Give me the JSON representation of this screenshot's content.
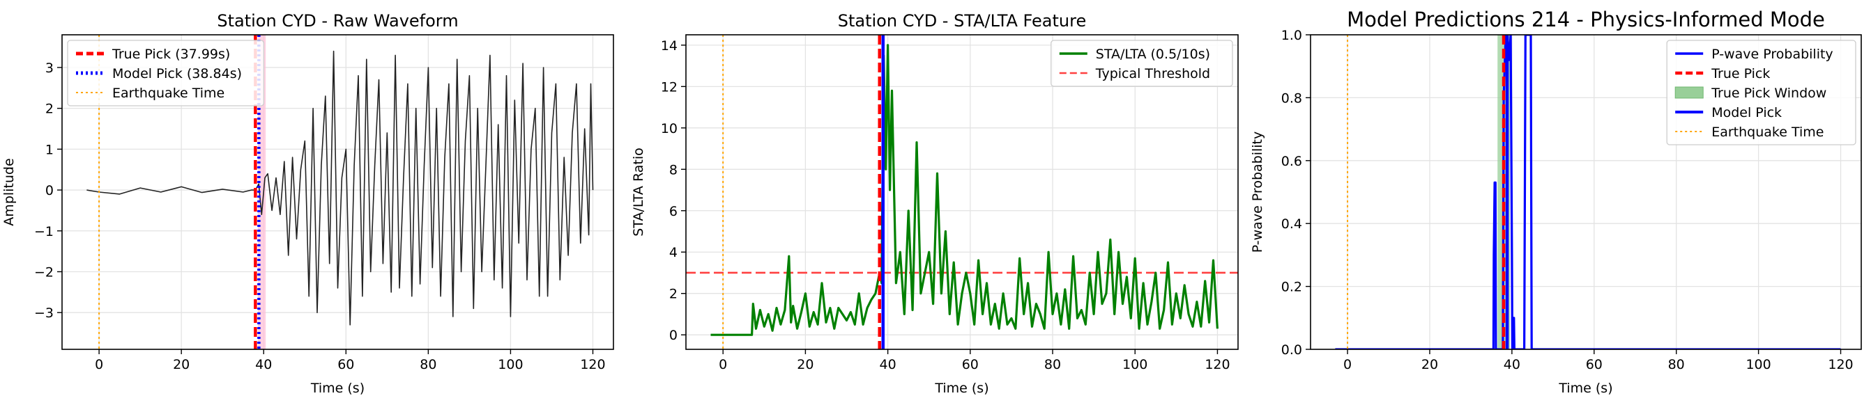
{
  "chart_data": [
    {
      "type": "line",
      "title": "Station CYD - Raw Waveform",
      "xlabel": "Time (s)",
      "ylabel": "Amplitude",
      "xlim": [
        -9,
        125
      ],
      "ylim": [
        -3.9,
        3.8
      ],
      "xticks": [
        0,
        20,
        40,
        60,
        80,
        100,
        120
      ],
      "yticks": [
        -3,
        -2,
        -1,
        0,
        1,
        2,
        3
      ],
      "grid": true,
      "legend": "top-left",
      "series": [
        {
          "name": "",
          "kind": "waveform",
          "color": "#222222",
          "x": [
            -3,
            0,
            5,
            10,
            15,
            20,
            25,
            30,
            35,
            37,
            38,
            38.8,
            39.5,
            40.3,
            41,
            42,
            43,
            44,
            45,
            46,
            47,
            48,
            49,
            50,
            51,
            52,
            53,
            54,
            55,
            56,
            57,
            58,
            59,
            60,
            61,
            62,
            63,
            64,
            65,
            66,
            67,
            68,
            69,
            70,
            71,
            72,
            73,
            74,
            75,
            76,
            77,
            78,
            79,
            80,
            81,
            82,
            83,
            84,
            85,
            86,
            87,
            88,
            89,
            90,
            91,
            92,
            93,
            94,
            95,
            96,
            97,
            98,
            99,
            100,
            101,
            102,
            103,
            104,
            105,
            106,
            107,
            108,
            109,
            110,
            111,
            112,
            113,
            114,
            115,
            116,
            117,
            118,
            119,
            119.5,
            120
          ],
          "y": [
            0.0,
            -0.05,
            -0.1,
            0.05,
            -0.05,
            0.08,
            -0.06,
            0.02,
            -0.05,
            0.0,
            0.0,
            0.15,
            -0.6,
            0.3,
            0.4,
            -0.5,
            0.3,
            -0.6,
            0.7,
            -1.6,
            0.8,
            -1.2,
            0.5,
            1.2,
            -2.6,
            2.0,
            -3.0,
            0.6,
            2.3,
            -1.8,
            3.4,
            -2.4,
            0.3,
            1.0,
            -3.3,
            0.6,
            2.8,
            -2.6,
            3.2,
            -2.0,
            0.6,
            2.7,
            -1.8,
            1.4,
            -2.5,
            3.3,
            -2.4,
            0.3,
            2.6,
            -2.6,
            2.0,
            -2.3,
            0.6,
            3.0,
            -1.9,
            2.0,
            -2.6,
            0.8,
            2.6,
            -3.1,
            3.2,
            -2.0,
            1.2,
            2.8,
            -2.9,
            2.0,
            -2.0,
            0.6,
            3.3,
            -2.2,
            1.6,
            -2.4,
            2.8,
            -3.1,
            2.2,
            -1.3,
            3.1,
            -2.2,
            1.0,
            2.0,
            -2.6,
            3.0,
            -2.6,
            1.4,
            2.6,
            -2.2,
            0.8,
            -1.6,
            1.4,
            2.6,
            -1.3,
            1.5,
            -1.1,
            2.6,
            0.0
          ]
        }
      ],
      "vlines": [
        {
          "name": "True Pick (37.99s)",
          "x": 37.99,
          "color": "#ff0000",
          "style": "dashed"
        },
        {
          "name": "Model Pick (38.84s)",
          "x": 38.84,
          "color": "#0000ff",
          "style": "dotted"
        },
        {
          "name": "Earthquake Time",
          "x": 0,
          "color": "#ffa500",
          "style": "dotted"
        }
      ],
      "spans": [
        {
          "x0": 38.6,
          "x1": 40.5,
          "color": "#ffc0d8"
        }
      ]
    },
    {
      "type": "line",
      "title": "Station CYD - STA/LTA Feature",
      "xlabel": "Time (s)",
      "ylabel": "STA/LTA Ratio",
      "xlim": [
        -9,
        125
      ],
      "ylim": [
        -0.7,
        14.5
      ],
      "xticks": [
        0,
        20,
        40,
        60,
        80,
        100,
        120
      ],
      "yticks": [
        0,
        2,
        4,
        6,
        8,
        10,
        12,
        14
      ],
      "grid": true,
      "legend": "top-right",
      "series": [
        {
          "name": "STA/LTA (0.5/10s)",
          "color": "#008000",
          "x": [
            -3,
            7,
            7.3,
            8,
            9,
            10,
            11,
            12,
            13,
            14,
            15,
            16,
            16.5,
            17,
            18,
            19,
            20,
            21,
            22,
            23,
            24,
            25,
            26,
            27,
            28,
            29,
            30,
            31,
            32,
            33,
            34,
            35,
            36,
            37,
            38,
            38.5,
            39,
            39.5,
            40,
            40.5,
            41,
            42,
            43,
            44,
            45,
            46,
            47,
            48,
            49,
            50,
            51,
            52,
            53,
            54,
            55,
            56,
            57,
            58,
            59,
            60,
            61,
            62,
            63,
            64,
            65,
            66,
            67,
            68,
            69,
            70,
            71,
            72,
            73,
            74,
            75,
            76,
            77,
            78,
            79,
            80,
            81,
            82,
            83,
            84,
            85,
            86,
            87,
            88,
            89,
            90,
            91,
            92,
            93,
            94,
            95,
            96,
            97,
            98,
            99,
            100,
            101,
            102,
            103,
            104,
            105,
            106,
            107,
            108,
            109,
            110,
            111,
            112,
            113,
            114,
            115,
            116,
            117,
            118,
            119,
            120
          ],
          "y": [
            0.0,
            0.0,
            1.5,
            0.3,
            1.2,
            0.4,
            1.0,
            0.2,
            1.3,
            0.5,
            1.2,
            3.8,
            0.6,
            1.4,
            0.3,
            1.1,
            2.0,
            0.4,
            1.1,
            0.5,
            2.5,
            0.6,
            1.3,
            0.3,
            1.3,
            1.0,
            0.7,
            1.1,
            0.5,
            2.0,
            0.5,
            1.3,
            1.7,
            2.0,
            3.0,
            2.5,
            13.5,
            8.0,
            14.0,
            7.0,
            11.8,
            2.5,
            4.0,
            1.0,
            6.0,
            1.2,
            9.3,
            2.0,
            3.0,
            4.0,
            1.5,
            7.8,
            2.0,
            5.0,
            1.0,
            3.5,
            0.5,
            2.0,
            3.0,
            2.0,
            0.5,
            3.6,
            1.0,
            2.5,
            0.5,
            1.5,
            0.3,
            2.0,
            0.5,
            0.8,
            0.3,
            3.7,
            1.0,
            2.5,
            0.4,
            1.5,
            1.0,
            0.3,
            4.0,
            1.0,
            2.0,
            0.5,
            2.2,
            0.3,
            3.8,
            0.8,
            1.2,
            0.5,
            3.0,
            1.0,
            4.0,
            1.5,
            2.0,
            4.6,
            1.0,
            4.0,
            1.5,
            2.8,
            0.8,
            3.7,
            0.3,
            2.5,
            0.5,
            1.6,
            3.0,
            0.3,
            1.2,
            3.5,
            0.5,
            2.0,
            0.8,
            2.4,
            1.0,
            0.4,
            1.6,
            0.4,
            2.6,
            0.6,
            3.6,
            0.3
          ]
        }
      ],
      "hlines": [
        {
          "name": "Typical Threshold",
          "y": 3.0,
          "color": "#ff4040",
          "style": "dashed"
        }
      ],
      "vlines": [
        {
          "name": "",
          "x": 37.99,
          "color": "#ff0000",
          "style": "dashed"
        },
        {
          "name": "",
          "x": 38.84,
          "color": "#0000ff",
          "style": "solid"
        },
        {
          "name": "",
          "x": 0,
          "color": "#ffa500",
          "style": "dotted"
        }
      ]
    },
    {
      "type": "line",
      "title": "Model Predictions 214 - Physics-Informed Mode",
      "xlabel": "Time (s)",
      "ylabel": "P-wave Probability",
      "xlim": [
        -9,
        125
      ],
      "ylim": [
        0,
        1.0
      ],
      "xticks": [
        0,
        20,
        40,
        60,
        80,
        100,
        120
      ],
      "yticks": [
        0.0,
        0.2,
        0.4,
        0.6,
        0.8,
        1.0
      ],
      "grid": true,
      "legend": "top-right",
      "series": [
        {
          "name": "P-wave Probability",
          "color": "#0000ff",
          "x": [
            -3,
            35.5,
            35.6,
            35.8,
            36.0,
            36.1,
            37.8,
            38.0,
            38.5,
            38.9,
            39.3,
            39.7,
            40.0,
            40.1,
            40.3,
            40.5,
            40.6,
            43.0,
            43.3,
            43.6,
            44.0,
            44.3,
            44.6,
            44.8,
            120
          ],
          "y": [
            0,
            0,
            0.3,
            0.53,
            0.53,
            0,
            0,
            0.8,
            1.0,
            1.0,
            0.92,
            1.0,
            0.3,
            0,
            0.1,
            0.1,
            0,
            0,
            1.0,
            1.0,
            1.0,
            1.0,
            1.0,
            0,
            0
          ]
        }
      ],
      "vlines": [
        {
          "name": "True Pick",
          "x": 37.99,
          "color": "#ff0000",
          "style": "dashed"
        },
        {
          "name": "Model Pick",
          "x": 38.84,
          "color": "#0000ff",
          "style": "solid"
        },
        {
          "name": "Earthquake Time",
          "x": 0,
          "color": "#ffa500",
          "style": "dotted"
        }
      ],
      "spans": [
        {
          "name": "True Pick Window",
          "x0": 36.5,
          "x1": 39.5,
          "color": "#98cf98"
        }
      ]
    }
  ]
}
